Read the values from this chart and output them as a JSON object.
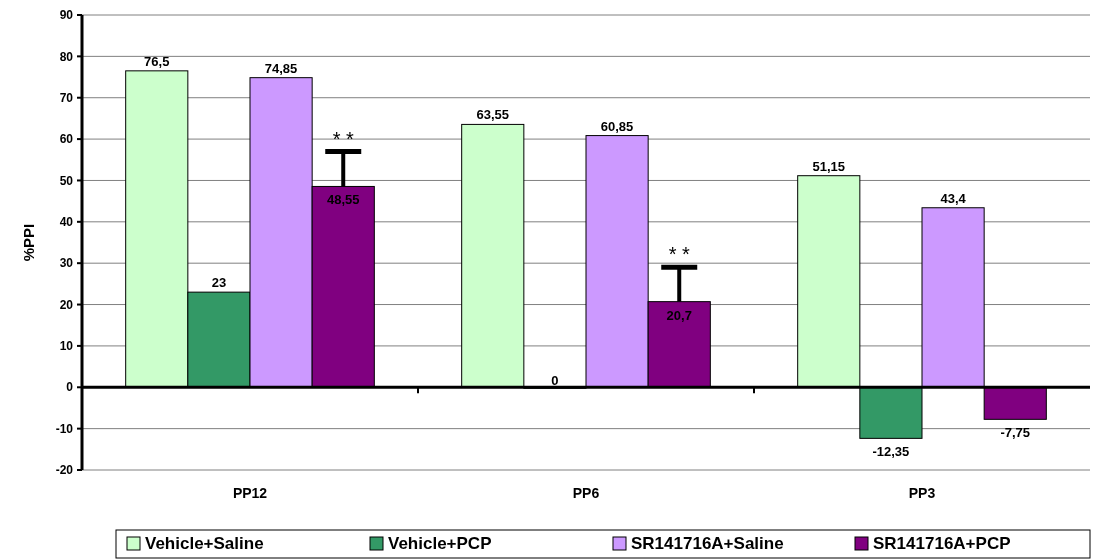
{
  "chart_data": {
    "type": "bar",
    "ylabel": "%PPI",
    "categories": [
      "PP12",
      "PP6",
      "PP3"
    ],
    "series": [
      {
        "name": "Vehicle+Saline",
        "color": "#ccffcc",
        "values": [
          76.5,
          63.55,
          51.15
        ],
        "value_labels": [
          "76,5",
          "63,55",
          "51,15"
        ]
      },
      {
        "name": "Vehicle+PCP",
        "color": "#339966",
        "values": [
          23,
          0,
          -12.35
        ],
        "value_labels": [
          "23",
          "0",
          "-12,35"
        ]
      },
      {
        "name": "SR141716A+Saline",
        "color": "#cc99ff",
        "values": [
          74.85,
          60.85,
          43.4
        ],
        "value_labels": [
          "74,85",
          "60,85",
          "43,4"
        ]
      },
      {
        "name": "SR141716A+PCP",
        "color": "#800080",
        "values": [
          48.55,
          20.7,
          -7.75
        ],
        "value_labels": [
          "48,55",
          "20,7",
          "-7,75"
        ],
        "errors": [
          [
            48.55,
            57
          ],
          [
            20.7,
            29
          ],
          null
        ]
      }
    ],
    "annotations": [
      "* *",
      "* *"
    ],
    "ylim": [
      -20,
      90
    ],
    "yticks": [
      -20,
      -10,
      0,
      10,
      20,
      30,
      40,
      50,
      60,
      70,
      80,
      90
    ],
    "grid": "y",
    "legend": "bottom"
  }
}
